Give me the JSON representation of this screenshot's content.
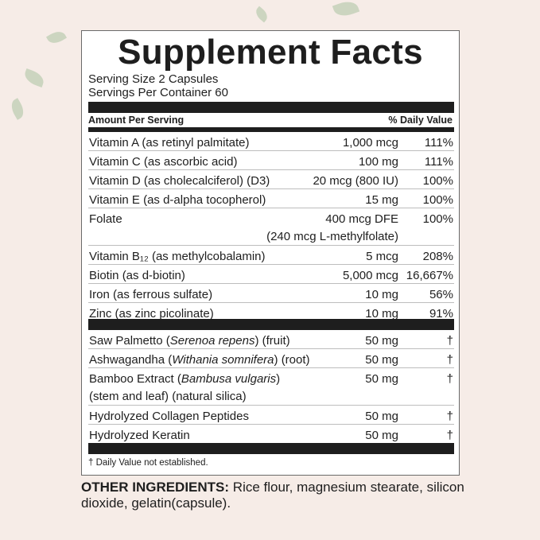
{
  "title": "Supplement Facts",
  "serving_size": "Serving Size 2 Capsules",
  "servings_per_container": "Servings Per Container 60",
  "header": {
    "amount": "Amount Per Serving",
    "dv": "% Daily Value"
  },
  "vitamins": [
    {
      "name": "Vitamin A (as retinyl palmitate)",
      "amount": "1,000 mcg",
      "dv": "111%"
    },
    {
      "name": "Vitamin C (as ascorbic acid)",
      "amount": "100 mg",
      "dv": "111%"
    },
    {
      "name": "Vitamin D (as cholecalciferol) (D3)",
      "amount": "20 mcg (800 IU)",
      "dv": "100%"
    },
    {
      "name": "Vitamin E (as d-alpha tocopherol)",
      "amount": "15 mg",
      "dv": "100%"
    },
    {
      "name": "Folate",
      "amount": "400 mcg DFE",
      "amount2": "(240 mcg L-methylfolate)",
      "dv": "100%"
    },
    {
      "name": "Vitamin B₁₂ (as methylcobalamin)",
      "amount": "5 mcg",
      "dv": "208%"
    },
    {
      "name": "Biotin (as d-biotin)",
      "amount": "5,000 mcg",
      "dv": "16,667%"
    },
    {
      "name": "Iron (as ferrous sulfate)",
      "amount": "10 mg",
      "dv": "56%"
    },
    {
      "name": "Zinc (as zinc picolinate)",
      "amount": "10 mg",
      "dv": "91%"
    }
  ],
  "botanicals": [
    {
      "name": "Saw Palmetto",
      "latin": "Serenoa repens",
      "part": "(fruit)",
      "amount": "50 mg",
      "dv": "†"
    },
    {
      "name": "Ashwagandha",
      "latin": "Withania somnifera",
      "part": "(root)",
      "amount": "50 mg",
      "dv": "†"
    },
    {
      "name": "Bamboo Extract",
      "latin": "Bambusa vulgaris",
      "part": "",
      "line2": "(stem and leaf) (natural silica)",
      "amount": "50 mg",
      "dv": "†"
    },
    {
      "name": "Hydrolyzed Collagen Peptides",
      "amount": "50 mg",
      "dv": "†"
    },
    {
      "name": "Hydrolyzed Keratin",
      "amount": "50 mg",
      "dv": "†"
    }
  ],
  "footnote": "† Daily Value not established.",
  "other_ingredients": {
    "label": "OTHER INGREDIENTS:",
    "text": " Rice flour, magnesium stearate, silicon dioxide, gelatin(capsule)."
  }
}
